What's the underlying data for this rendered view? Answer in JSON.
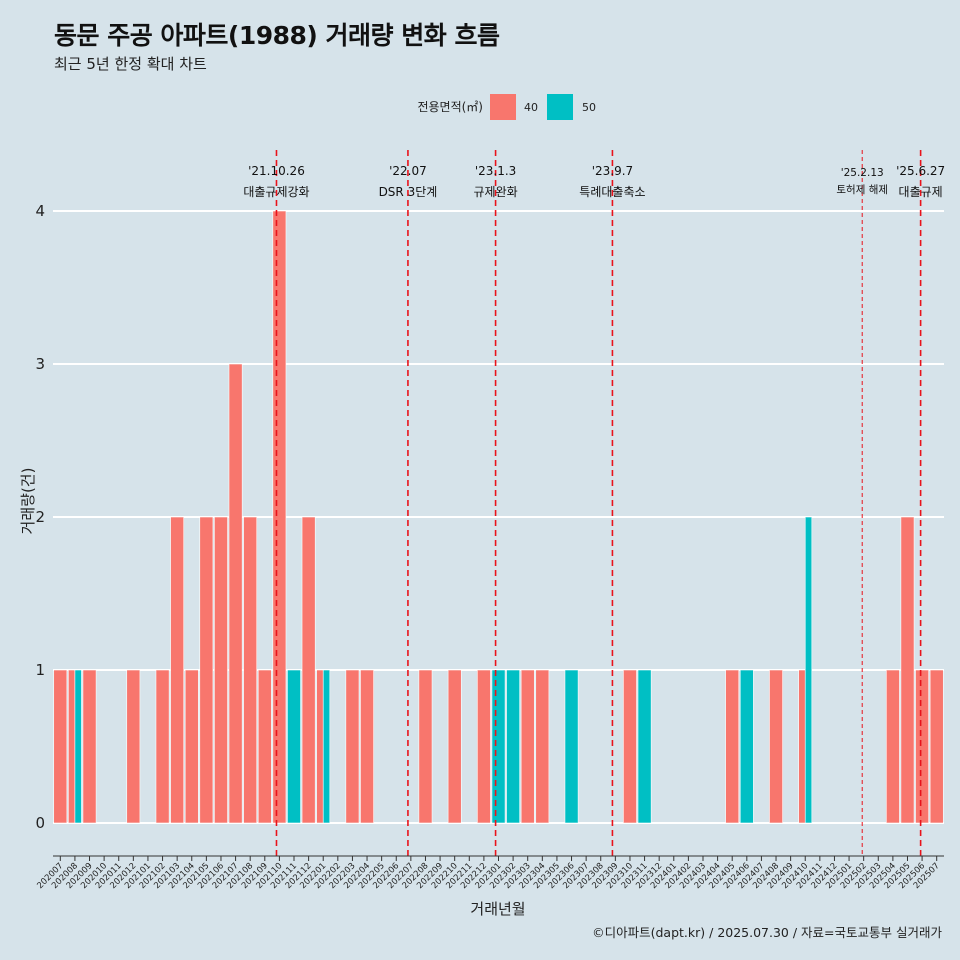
{
  "title": "동문 주공 아파트(1988) 거래량 변화 흐름",
  "subtitle": "최근 5년 한정 확대 차트",
  "caption": "©디아파트(dapt.kr) / 2025.07.30 / 자료=국토교통부 실거래가",
  "chart_data": {
    "type": "bar",
    "xlabel": "거래년월",
    "ylabel": "거래량(건)",
    "ylim": [
      0,
      4
    ],
    "yticks": [
      "0",
      "1",
      "2",
      "3",
      "4"
    ],
    "legend": {
      "title": "전용면적(㎡)",
      "position": "top",
      "entries": [
        {
          "label": "40",
          "color": "#F8766D"
        },
        {
          "label": "50",
          "color": "#00BFC4"
        }
      ]
    },
    "categories": [
      "202007",
      "202008",
      "202009",
      "202010",
      "202011",
      "202012",
      "202101",
      "202102",
      "202103",
      "202104",
      "202105",
      "202106",
      "202107",
      "202108",
      "202109",
      "202110",
      "202111",
      "202112",
      "202201",
      "202202",
      "202203",
      "202204",
      "202205",
      "202206",
      "202207",
      "202208",
      "202209",
      "202210",
      "202211",
      "202212",
      "202301",
      "202302",
      "202303",
      "202304",
      "202305",
      "202306",
      "202307",
      "202308",
      "202309",
      "202310",
      "202311",
      "202312",
      "202401",
      "202402",
      "202403",
      "202404",
      "202405",
      "202406",
      "202407",
      "202408",
      "202409",
      "202410",
      "202411",
      "202412",
      "202501",
      "202502",
      "202503",
      "202504",
      "202505",
      "202506",
      "202507"
    ],
    "series": [
      {
        "name": "40",
        "color": "#F8766D",
        "values": [
          1,
          1,
          1,
          0,
          0,
          1,
          0,
          1,
          2,
          1,
          2,
          2,
          3,
          2,
          1,
          4,
          0,
          2,
          1,
          0,
          1,
          1,
          0,
          0,
          0,
          1,
          0,
          1,
          0,
          1,
          0,
          0,
          1,
          1,
          0,
          0,
          0,
          0,
          0,
          1,
          0,
          0,
          0,
          0,
          0,
          0,
          1,
          0,
          0,
          1,
          0,
          1,
          0,
          0,
          0,
          0,
          0,
          1,
          2,
          1,
          1
        ]
      },
      {
        "name": "50",
        "color": "#00BFC4",
        "values": [
          0,
          1,
          0,
          0,
          0,
          0,
          0,
          0,
          0,
          0,
          0,
          0,
          0,
          0,
          0,
          0,
          1,
          0,
          1,
          0,
          0,
          0,
          0,
          0,
          0,
          0,
          0,
          0,
          0,
          0,
          1,
          1,
          0,
          0,
          0,
          1,
          0,
          0,
          0,
          0,
          1,
          0,
          0,
          0,
          0,
          0,
          0,
          1,
          0,
          0,
          0,
          2,
          0,
          0,
          0,
          0,
          0,
          0,
          0,
          0,
          0
        ]
      }
    ],
    "events": [
      {
        "date": "'21.10.26",
        "label": "대출규제강화",
        "x": 15.3
      },
      {
        "date": "'22.07",
        "label": "DSR 3단계",
        "x": 24.3
      },
      {
        "date": "'23.1.3",
        "label": "규제완화",
        "x": 30.3
      },
      {
        "date": "'23.9.7",
        "label": "특례대출축소",
        "x": 38.3
      },
      {
        "date": "'25.2.13",
        "label": "토허제 해제",
        "x": 55.4
      },
      {
        "date": "'25.6.27",
        "label": "대출규제",
        "x": 59.4
      }
    ],
    "grid": true
  }
}
